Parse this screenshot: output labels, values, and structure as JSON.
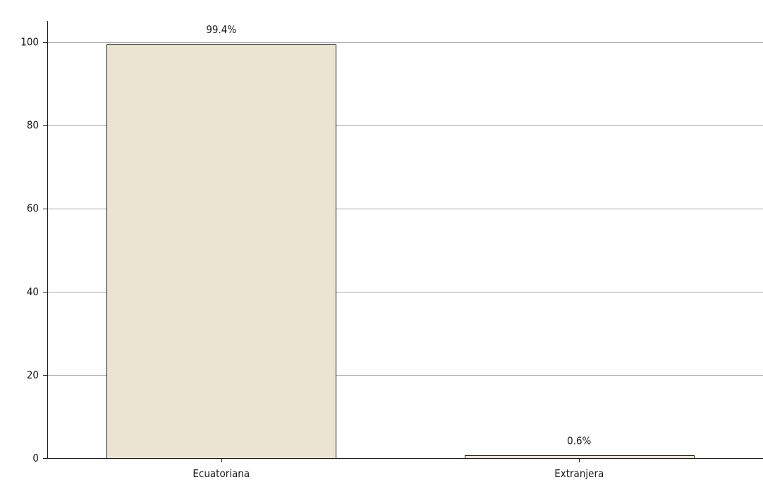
{
  "chart_data": {
    "type": "bar",
    "categories": [
      "Ecuatoriana",
      "Extranjera"
    ],
    "values": [
      99.4,
      0.6
    ],
    "data_labels": [
      "99.4%",
      "0.6%"
    ],
    "title": "",
    "xlabel": "",
    "ylabel": "",
    "ylim": [
      0,
      105
    ],
    "yticks": [
      0,
      20,
      40,
      60,
      80,
      100
    ],
    "grid": true,
    "legend": "none",
    "bar_color": "#ebe4d0",
    "bar_edge_color": "#1a1a1a",
    "grid_color": "#a6a6a6"
  }
}
